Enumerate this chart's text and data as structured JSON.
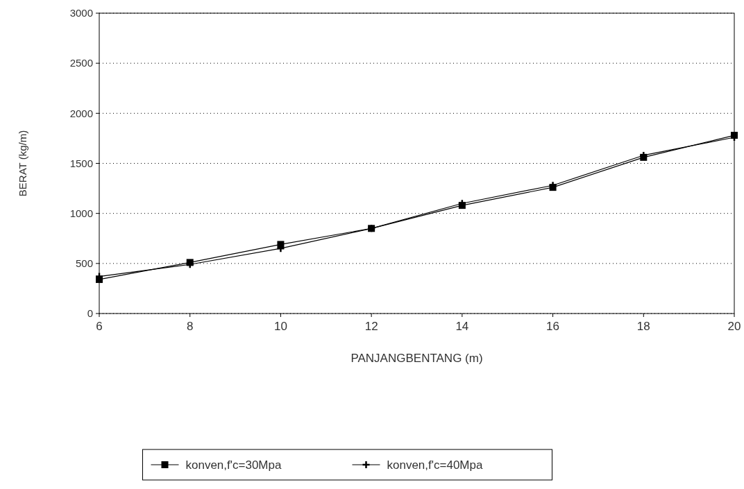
{
  "chart_data": {
    "type": "line",
    "xlabel": "PANJANGBENTANG (m)",
    "ylabel": "BERAT (kg/m)",
    "x": [
      6,
      8,
      10,
      12,
      14,
      16,
      18,
      20
    ],
    "series": [
      {
        "name": "konven,f'c=30Mpa",
        "color": "#000000",
        "marker": "square",
        "values": [
          340,
          510,
          690,
          850,
          1080,
          1260,
          1560,
          1780
        ]
      },
      {
        "name": "konven,f'c=40Mpa",
        "color": "#000000",
        "marker": "cross",
        "values": [
          370,
          490,
          650,
          850,
          1100,
          1280,
          1580,
          1760
        ]
      }
    ],
    "xlim": [
      6,
      20
    ],
    "xticks": [
      6,
      8,
      10,
      12,
      14,
      16,
      18,
      20
    ],
    "ylim": [
      0,
      3000
    ],
    "yticks": [
      0,
      500,
      1000,
      1500,
      2000,
      2500,
      3000
    ],
    "grid": "y",
    "legend": "bottom",
    "line_style": "solid"
  }
}
